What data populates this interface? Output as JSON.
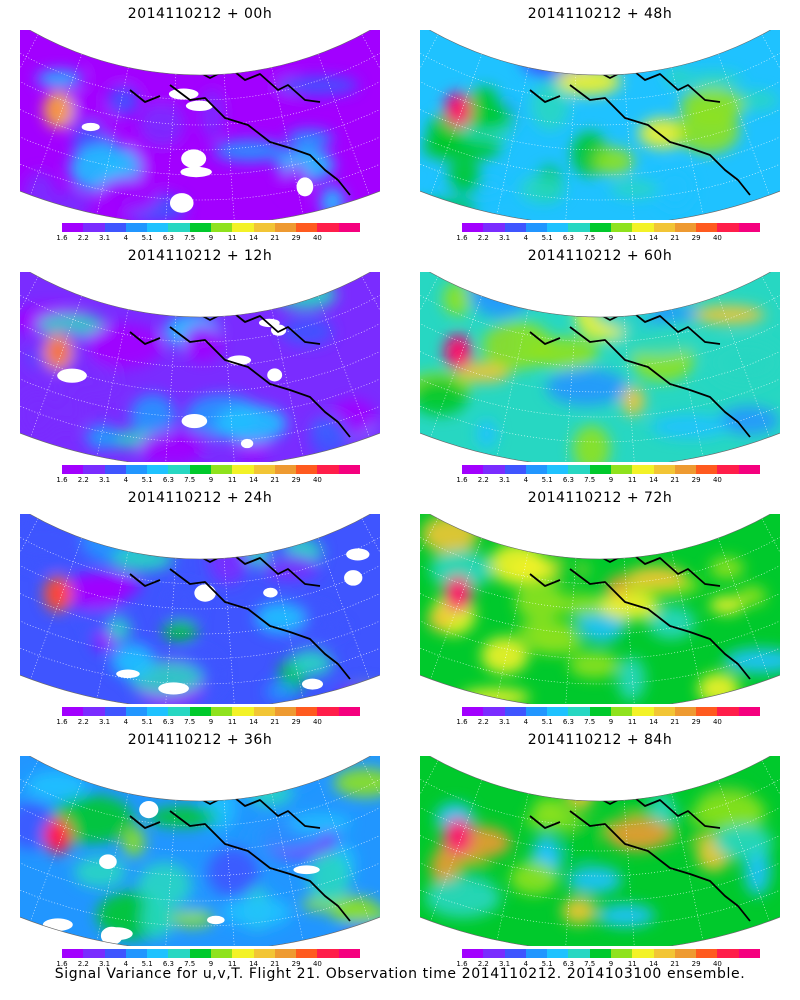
{
  "panels": [
    {
      "title": "2014110212 + 00h",
      "level": 0.0
    },
    {
      "title": "2014110212 + 48h",
      "level": 0.55
    },
    {
      "title": "2014110212 + 12h",
      "level": 0.15
    },
    {
      "title": "2014110212 + 60h",
      "level": 0.62
    },
    {
      "title": "2014110212 + 24h",
      "level": 0.25
    },
    {
      "title": "2014110212 + 72h",
      "level": 0.72
    },
    {
      "title": "2014110212 + 36h",
      "level": 0.4
    },
    {
      "title": "2014110212 + 84h",
      "level": 0.8
    }
  ],
  "colorbar": {
    "labels": [
      "1.6",
      "2.2",
      "3.1",
      "4",
      "5.1",
      "6.3",
      "7.5",
      "9",
      "11",
      "14",
      "21",
      "29",
      "40"
    ],
    "colors": [
      "#a200ff",
      "#7a2cff",
      "#3f55ff",
      "#2196ff",
      "#1fc2ff",
      "#27d7c2",
      "#00c92c",
      "#8fe21d",
      "#f3f227",
      "#f2c535",
      "#ee9a31",
      "#ff5a1f",
      "#ff1e4a",
      "#f5007e"
    ]
  },
  "footer": "Signal Variance for u,v,T. Flight 21. Observation time 2014110212. 2014103100 ensemble."
}
